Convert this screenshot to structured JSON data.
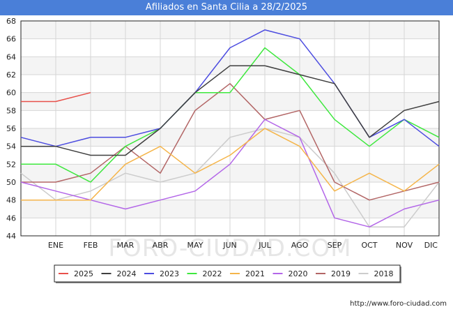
{
  "title": "Afiliados en Santa Cilia a 28/2/2025",
  "watermark": "FORO-CIUDAD.COM",
  "url": "http://www.foro-ciudad.com",
  "chart_data": {
    "type": "line",
    "title": "Afiliados en Santa Cilia a 28/2/2025",
    "xlabel": "",
    "ylabel": "",
    "categories": [
      "",
      "ENE",
      "FEB",
      "MAR",
      "ABR",
      "MAY",
      "JUN",
      "JUL",
      "AGO",
      "SEP",
      "OCT",
      "NOV",
      "DIC"
    ],
    "ylim": [
      44,
      68
    ],
    "yticks": [
      44,
      46,
      48,
      50,
      52,
      54,
      56,
      58,
      60,
      62,
      64,
      66,
      68
    ],
    "grid": true,
    "legend_position": "bottom",
    "series": [
      {
        "name": "2025",
        "color": "#e8504a",
        "values": [
          59,
          59,
          60,
          null,
          null,
          null,
          null,
          null,
          null,
          null,
          null,
          null,
          null
        ]
      },
      {
        "name": "2024",
        "color": "#3f3f3f",
        "values": [
          54,
          54,
          53,
          53,
          56,
          60,
          63,
          63,
          62,
          61,
          55,
          58,
          59
        ]
      },
      {
        "name": "2023",
        "color": "#4c4ce0",
        "values": [
          55,
          54,
          55,
          55,
          56,
          60,
          65,
          67,
          66,
          61,
          55,
          57,
          54
        ]
      },
      {
        "name": "2022",
        "color": "#3ee83e",
        "values": [
          52,
          52,
          50,
          54,
          56,
          60,
          60,
          65,
          62,
          57,
          54,
          57,
          55
        ]
      },
      {
        "name": "2021",
        "color": "#f5b54a",
        "values": [
          48,
          48,
          48,
          52,
          54,
          51,
          53,
          56,
          54,
          49,
          51,
          49,
          52
        ]
      },
      {
        "name": "2020",
        "color": "#b366e8",
        "values": [
          50,
          49,
          48,
          47,
          48,
          49,
          52,
          57,
          55,
          46,
          45,
          47,
          48
        ]
      },
      {
        "name": "2019",
        "color": "#b36666",
        "values": [
          50,
          50,
          51,
          54,
          51,
          58,
          61,
          57,
          58,
          50,
          48,
          49,
          50
        ]
      },
      {
        "name": "2018",
        "color": "#cccccc",
        "values": [
          51,
          48,
          49,
          51,
          50,
          51,
          55,
          56,
          55,
          51,
          45,
          45,
          50
        ]
      }
    ]
  }
}
